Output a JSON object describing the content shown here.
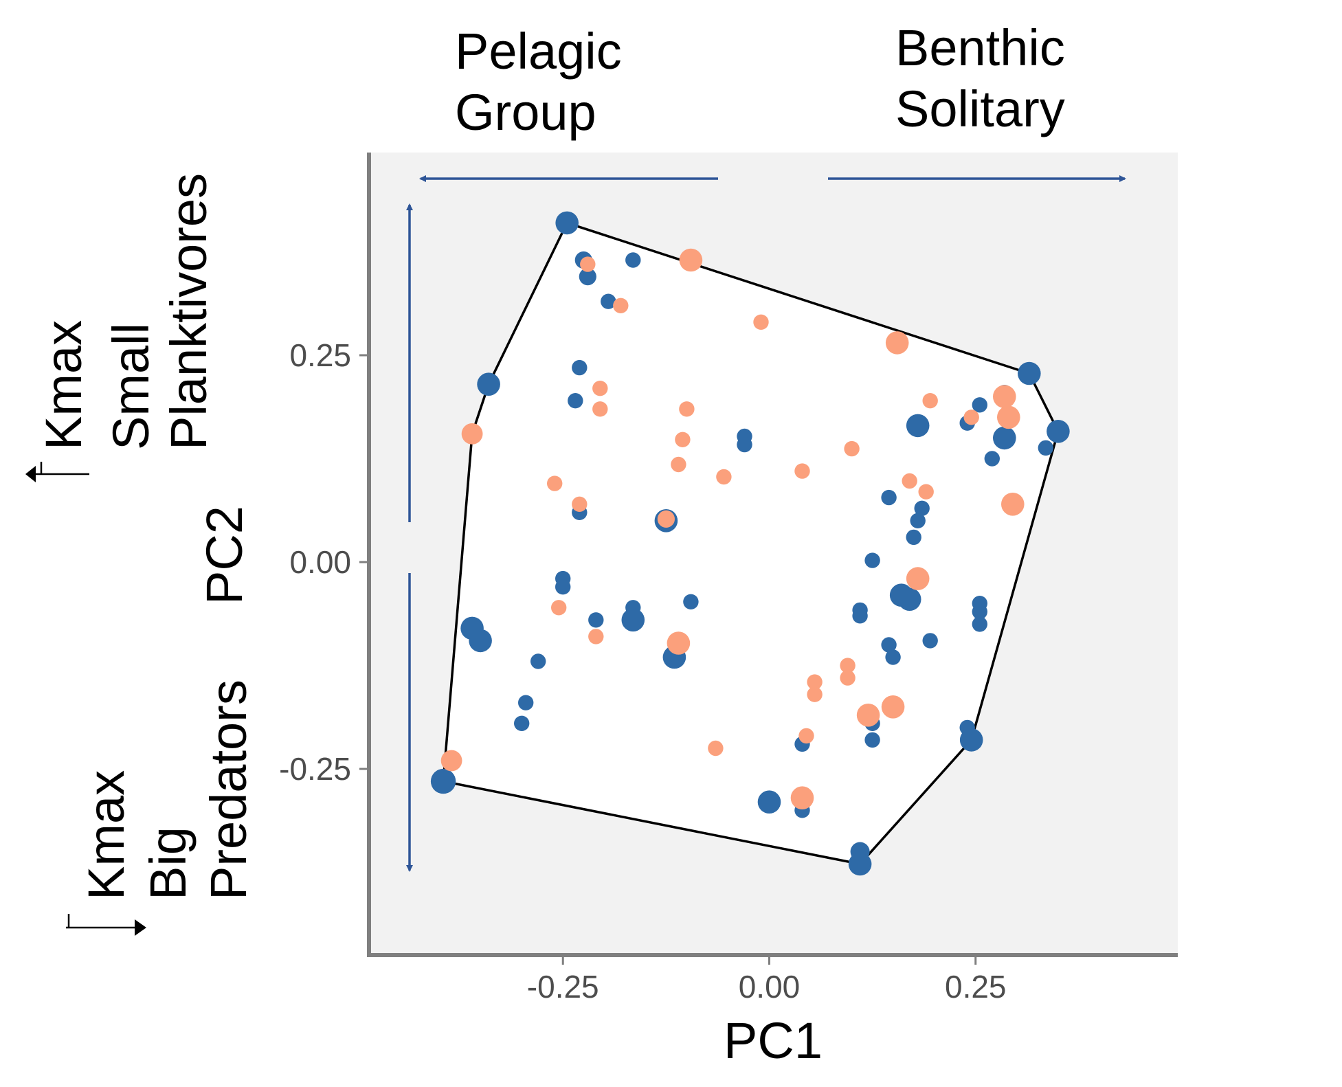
{
  "chart_data": {
    "type": "scatter",
    "xlabel": "PC1",
    "ylabel": "PC2",
    "xlim": [
      -0.485,
      0.495
    ],
    "ylim": [
      -0.475,
      0.495
    ],
    "x_ticks": [
      "-0.25",
      "0.00",
      "0.25"
    ],
    "y_ticks": [
      "0.25",
      "0.00",
      "-0.25"
    ],
    "x_tick_values": [
      -0.25,
      0.0,
      0.25
    ],
    "y_tick_values": [
      0.25,
      0.0,
      -0.25
    ],
    "grid": false,
    "background_color": "#f2f2f2",
    "hull_fill": "#ffffff",
    "annotations": {
      "left_arrow_label": [
        "Pelagic",
        "Group"
      ],
      "right_arrow_label": [
        "Benthic",
        "Solitary"
      ],
      "top_label": [
        "Small",
        "Planktivores"
      ],
      "bottom_label": [
        "Big",
        "Predators"
      ],
      "kmax_up": "Kmax",
      "kmax_down": "Kmax"
    },
    "arrow_color": "#2e5597",
    "hull": [
      [
        -0.245,
        0.41
      ],
      [
        0.315,
        0.228
      ],
      [
        0.35,
        0.158
      ],
      [
        0.245,
        -0.215
      ],
      [
        0.11,
        -0.365
      ],
      [
        -0.395,
        -0.265
      ],
      [
        -0.36,
        0.155
      ],
      [
        -0.34,
        0.215
      ]
    ],
    "series": [
      {
        "color": "#2e6aa7",
        "points": [
          [
            -0.245,
            0.41,
            1.2
          ],
          [
            -0.225,
            0.365,
            0.9
          ],
          [
            -0.22,
            0.345,
            0.9
          ],
          [
            -0.165,
            0.365,
            0.8
          ],
          [
            -0.195,
            0.315,
            0.8
          ],
          [
            -0.34,
            0.215,
            1.2
          ],
          [
            -0.23,
            0.235,
            0.8
          ],
          [
            -0.235,
            0.195,
            0.8
          ],
          [
            -0.125,
            0.05,
            1.2
          ],
          [
            -0.23,
            0.06,
            0.8
          ],
          [
            -0.03,
            0.152,
            0.8
          ],
          [
            -0.03,
            0.142,
            0.8
          ],
          [
            -0.25,
            -0.02,
            0.8
          ],
          [
            -0.25,
            -0.03,
            0.8
          ],
          [
            -0.21,
            -0.07,
            0.8
          ],
          [
            -0.165,
            -0.055,
            0.8
          ],
          [
            -0.165,
            -0.07,
            1.2
          ],
          [
            -0.095,
            -0.048,
            0.8
          ],
          [
            -0.36,
            -0.08,
            1.2
          ],
          [
            -0.35,
            -0.095,
            1.2
          ],
          [
            -0.28,
            -0.12,
            0.8
          ],
          [
            -0.295,
            -0.17,
            0.8
          ],
          [
            -0.3,
            -0.195,
            0.8
          ],
          [
            -0.115,
            -0.115,
            1.2
          ],
          [
            -0.115,
            -0.11,
            0.9
          ],
          [
            -0.395,
            -0.265,
            1.3
          ],
          [
            0.0,
            -0.29,
            1.2
          ],
          [
            0.04,
            -0.3,
            0.8
          ],
          [
            0.04,
            -0.22,
            0.8
          ],
          [
            0.11,
            -0.35,
            1.0
          ],
          [
            0.11,
            -0.365,
            1.2
          ],
          [
            0.125,
            -0.215,
            0.8
          ],
          [
            0.125,
            -0.195,
            0.8
          ],
          [
            0.245,
            -0.215,
            1.2
          ],
          [
            0.24,
            -0.2,
            0.8
          ],
          [
            0.315,
            0.228,
            1.2
          ],
          [
            0.35,
            0.158,
            1.2
          ],
          [
            0.335,
            0.138,
            0.8
          ],
          [
            0.285,
            0.205,
            0.8
          ],
          [
            0.255,
            0.19,
            0.8
          ],
          [
            0.24,
            0.168,
            0.8
          ],
          [
            0.285,
            0.15,
            1.2
          ],
          [
            0.27,
            0.125,
            0.8
          ],
          [
            0.295,
            0.068,
            0.8
          ],
          [
            0.18,
            0.165,
            1.2
          ],
          [
            0.145,
            0.078,
            0.8
          ],
          [
            0.185,
            0.065,
            0.8
          ],
          [
            0.18,
            0.05,
            0.8
          ],
          [
            0.175,
            0.03,
            0.8
          ],
          [
            0.125,
            0.002,
            0.8
          ],
          [
            0.16,
            -0.04,
            1.2
          ],
          [
            0.17,
            -0.045,
            1.2
          ],
          [
            0.11,
            -0.058,
            0.8
          ],
          [
            0.11,
            -0.065,
            0.8
          ],
          [
            0.145,
            -0.1,
            0.8
          ],
          [
            0.15,
            -0.115,
            0.8
          ],
          [
            0.195,
            -0.095,
            0.8
          ],
          [
            0.255,
            -0.05,
            0.8
          ],
          [
            0.255,
            -0.06,
            0.8
          ],
          [
            0.255,
            -0.075,
            0.8
          ]
        ]
      },
      {
        "color": "#fba07c",
        "points": [
          [
            -0.22,
            0.36,
            0.8
          ],
          [
            -0.095,
            0.365,
            1.2
          ],
          [
            -0.18,
            0.31,
            0.8
          ],
          [
            -0.01,
            0.29,
            0.8
          ],
          [
            0.155,
            0.265,
            1.2
          ],
          [
            -0.205,
            0.21,
            0.8
          ],
          [
            -0.205,
            0.185,
            0.8
          ],
          [
            -0.1,
            0.185,
            0.8
          ],
          [
            -0.105,
            0.148,
            0.8
          ],
          [
            -0.11,
            0.118,
            0.8
          ],
          [
            -0.055,
            0.103,
            0.8
          ],
          [
            0.04,
            0.11,
            0.8
          ],
          [
            0.1,
            0.137,
            0.8
          ],
          [
            0.195,
            0.195,
            0.8
          ],
          [
            0.285,
            0.2,
            1.2
          ],
          [
            0.29,
            0.175,
            1.2
          ],
          [
            0.245,
            0.175,
            0.8
          ],
          [
            -0.26,
            0.095,
            0.8
          ],
          [
            -0.23,
            0.07,
            0.8
          ],
          [
            -0.125,
            0.052,
            0.9
          ],
          [
            0.17,
            0.098,
            0.8
          ],
          [
            0.19,
            0.085,
            0.8
          ],
          [
            0.295,
            0.07,
            1.2
          ],
          [
            0.18,
            -0.02,
            1.2
          ],
          [
            -0.255,
            -0.055,
            0.8
          ],
          [
            -0.21,
            -0.09,
            0.8
          ],
          [
            -0.11,
            -0.098,
            1.2
          ],
          [
            -0.36,
            0.155,
            1.1
          ],
          [
            0.095,
            -0.125,
            0.8
          ],
          [
            0.095,
            -0.14,
            0.8
          ],
          [
            0.055,
            -0.145,
            0.8
          ],
          [
            0.055,
            -0.16,
            0.8
          ],
          [
            0.12,
            -0.185,
            1.2
          ],
          [
            0.15,
            -0.175,
            1.2
          ],
          [
            -0.065,
            -0.225,
            0.8
          ],
          [
            0.045,
            -0.21,
            0.8
          ],
          [
            0.04,
            -0.285,
            1.2
          ],
          [
            -0.385,
            -0.24,
            1.1
          ]
        ]
      }
    ]
  }
}
